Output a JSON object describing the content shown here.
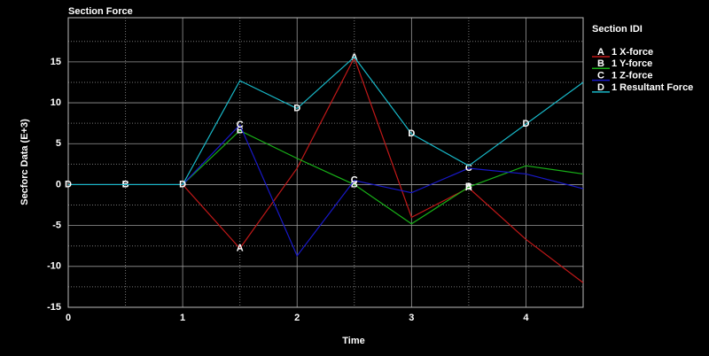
{
  "chart_data": {
    "type": "line",
    "title": "Section Force",
    "x_label": "Time",
    "y_label": "Secforc Data (E+3)",
    "legend_title": "Section IDI",
    "legend_position": "right",
    "x": [
      0,
      0.5,
      1,
      1.5,
      2,
      2.5,
      3,
      3.5,
      4,
      4.5
    ],
    "series": [
      {
        "name": "1 X-force",
        "marker": "A",
        "color": "#c01818",
        "labeled_points": [
          3,
          5,
          7
        ],
        "values": [
          0,
          0,
          0,
          -7.8,
          2,
          15.5,
          -4,
          -0.4,
          -6.7,
          -12
        ]
      },
      {
        "name": "1 Y-force",
        "marker": "B",
        "color": "#18b018",
        "labeled_points": [
          1,
          3,
          5,
          7
        ],
        "values": [
          0,
          0,
          0,
          6.6,
          3.2,
          0,
          -4.8,
          -0.3,
          2.3,
          1.3
        ]
      },
      {
        "name": "1 Z-force",
        "marker": "C",
        "color": "#1818c8",
        "labeled_points": [
          1,
          3,
          5,
          7
        ],
        "values": [
          0,
          0,
          0,
          7.3,
          -8.7,
          0.5,
          -1,
          2,
          1.3,
          -0.5
        ]
      },
      {
        "name": "1 Resultant Force",
        "marker": "D",
        "color": "#18b8c8",
        "labeled_points": [
          0,
          2,
          4,
          6,
          8
        ],
        "values": [
          0,
          0,
          0,
          12.7,
          9.3,
          15.6,
          6.2,
          2.3,
          7.4,
          12.5
        ]
      }
    ],
    "xlim": [
      0,
      4.5
    ],
    "xticks": [
      0,
      1,
      2,
      3,
      4
    ],
    "minor_xticks": [
      0.5,
      1.5,
      2.5,
      3.5
    ],
    "ylim": [
      -15,
      20.4
    ],
    "yticks": [
      -15,
      -10,
      -5,
      0,
      5,
      10,
      15
    ],
    "minor_yticks": [
      -12.5,
      -7.5,
      -2.5,
      2.5,
      7.5,
      12.5,
      17.5
    ],
    "grid": true
  }
}
